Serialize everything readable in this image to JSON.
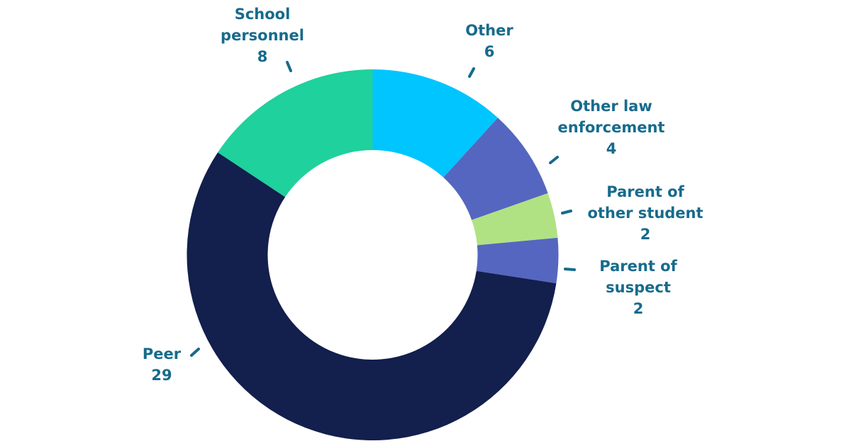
{
  "chart_data": {
    "type": "donut",
    "categories": [
      "Other",
      "Other law enforcement",
      "Parent of other student",
      "Parent of suspect",
      "Peer",
      "School personnel"
    ],
    "values": [
      6,
      4,
      2,
      2,
      29,
      8
    ],
    "colors": [
      "#00c5ff",
      "#5566c0",
      "#b0e283",
      "#5566c0",
      "#131f4c",
      "#1fd19c"
    ]
  }
}
